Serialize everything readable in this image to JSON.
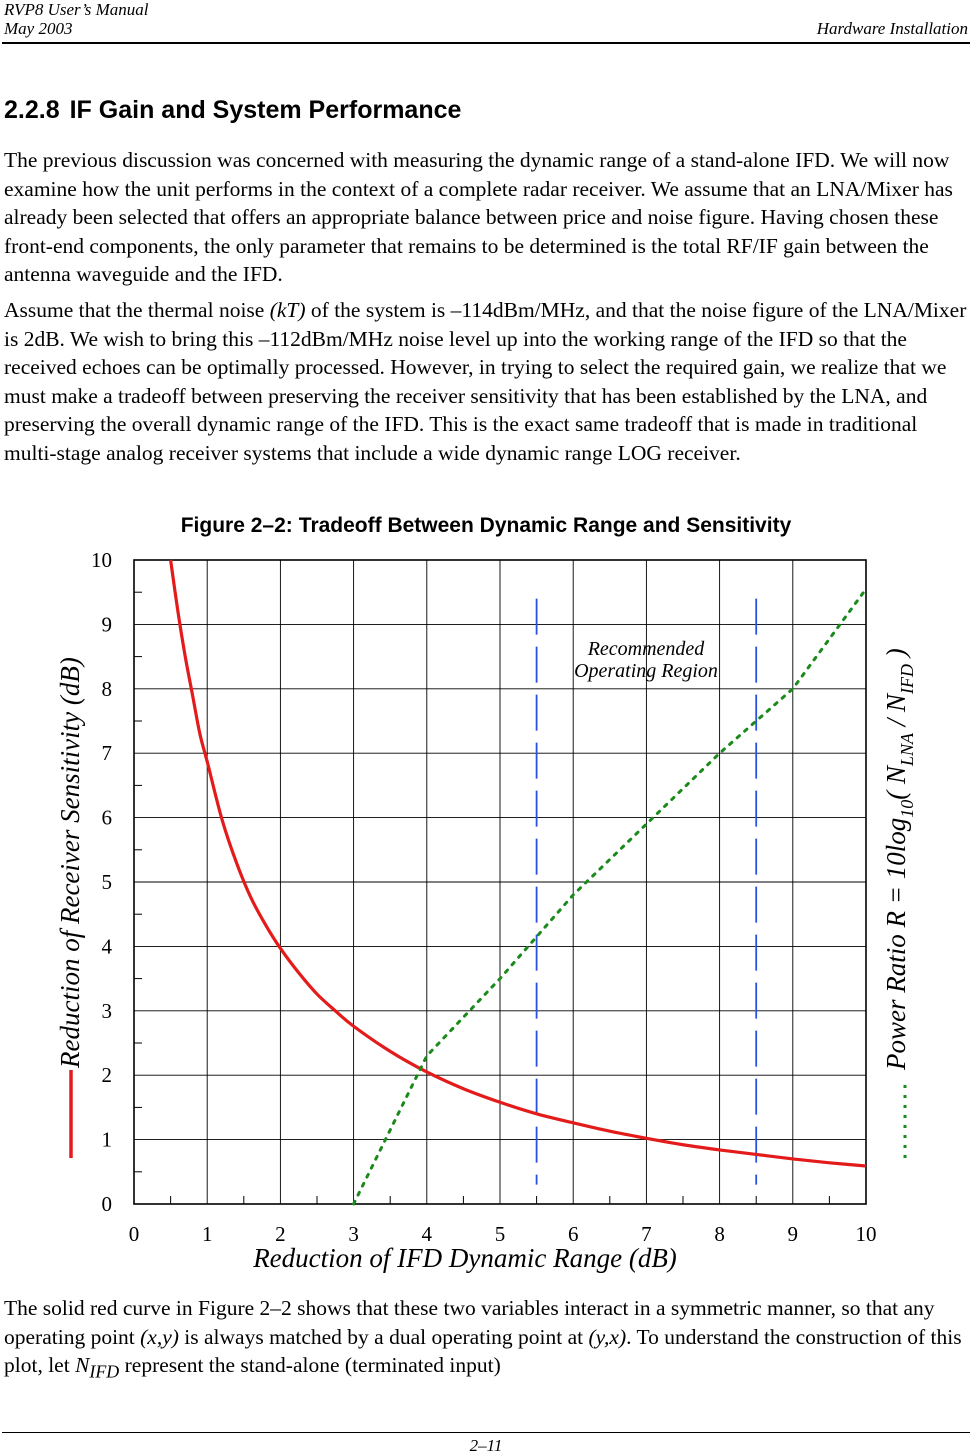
{
  "header": {
    "manual_title": "RVP8 User’s Manual",
    "date": "May 2003",
    "section": "Hardware Installation"
  },
  "section": {
    "number": "2.2.8",
    "title": "IF Gain and System Performance"
  },
  "paragraphs": {
    "p1": "The previous discussion was concerned with measuring the dynamic range of a stand-alone IFD. We will now examine how the unit performs in the context of a complete radar receiver.  We assume that an LNA/Mixer has already been selected that offers an appropriate balance between price and noise figure.  Having chosen these front-end components, the only  parameter that remains to be determined is the total RF/IF gain between the antenna waveguide and the IFD.",
    "p2_a": "Assume that the thermal noise ",
    "p2_kt": "(kT)",
    "p2_b": " of the system is –114dBm/MHz, and that the noise figure of the LNA/Mixer is 2dB.  We wish to bring this –112dBm/MHz noise level up into the working range of the IFD so that the received echoes can be optimally processed.  However, in trying to select the required gain, we realize that we must make a tradeoff between preserving the receiver sensitivity that has been established by the LNA, and preserving the overall dynamic range of the IFD.  This is the exact same tradeoff that is made in traditional multi-stage analog receiver systems that include a wide dynamic range LOG receiver.",
    "p3_a": "The solid red curve in Figure 2–2 shows that these two variables interact in a symmetric manner, so that any operating point ",
    "p3_xy": "(x,y)",
    "p3_b": " is always matched by a dual operating point at ",
    "p3_yx": "(y,x)",
    "p3_c": ".  To understand the construction of this plot, let ",
    "p3_n": "N",
    "p3_sub": "IFD",
    "p3_d": " represent the stand-alone (terminated input)"
  },
  "figure": {
    "label": "Figure 2–2:",
    "title": "Tradeoff Between Dynamic Range and Sensitivity"
  },
  "chart_data": {
    "type": "line",
    "title": "Tradeoff Between Dynamic Range and Sensitivity",
    "xlabel": "Reduction of IFD Dynamic Range (dB)",
    "ylabel": "Reduction of Receiver Sensitivity (dB)",
    "y2label_prefix": "Power Ratio R = 10log",
    "y2label_sub10": "10",
    "y2label_paren": "( N",
    "y2label_sub_lna": "LNA",
    "y2label_slash": " / N",
    "y2label_sub_ifd": "IFD",
    "y2label_close": " )",
    "xlim": [
      0,
      10
    ],
    "ylim": [
      0,
      10
    ],
    "x_ticks": [
      "0",
      "1",
      "2",
      "3",
      "4",
      "5",
      "6",
      "7",
      "8",
      "9",
      "10"
    ],
    "y_ticks": [
      "0",
      "1",
      "2",
      "3",
      "4",
      "5",
      "6",
      "7",
      "8",
      "9",
      "10"
    ],
    "grid": true,
    "annotation_line1": "Recommended",
    "annotation_line2": "Operating Region",
    "region_bounds_x": [
      5.5,
      8.5
    ],
    "series": [
      {
        "name": "Reduction of Receiver Sensitivity",
        "style": "solid",
        "color": "#e31b1b",
        "x": [
          0.5,
          0.6,
          0.7,
          0.8,
          0.9,
          1.0,
          1.2,
          1.4,
          1.6,
          1.8,
          2.0,
          2.25,
          2.5,
          2.75,
          3.0,
          3.5,
          4.0,
          4.5,
          5.0,
          5.5,
          6.0,
          6.5,
          7.0,
          7.5,
          8.0,
          8.5,
          9.0,
          9.5,
          10.0
        ],
        "y": [
          10.0,
          9.2,
          8.5,
          7.9,
          7.3,
          6.87,
          5.98,
          5.3,
          4.75,
          4.33,
          3.97,
          3.59,
          3.26,
          3.0,
          2.76,
          2.37,
          2.05,
          1.79,
          1.58,
          1.4,
          1.26,
          1.13,
          1.02,
          0.92,
          0.84,
          0.77,
          0.7,
          0.64,
          0.59
        ]
      },
      {
        "name": "Power Ratio R",
        "style": "dotted",
        "color": "#1a8a1a",
        "x": [
          3.0,
          4.0,
          5.0,
          6.0,
          7.0,
          8.0,
          9.0,
          10.0
        ],
        "y": [
          0.0,
          2.3,
          3.5,
          4.8,
          5.9,
          7.0,
          8.0,
          9.55
        ]
      }
    ]
  },
  "footer": {
    "page_number": "2–11"
  }
}
